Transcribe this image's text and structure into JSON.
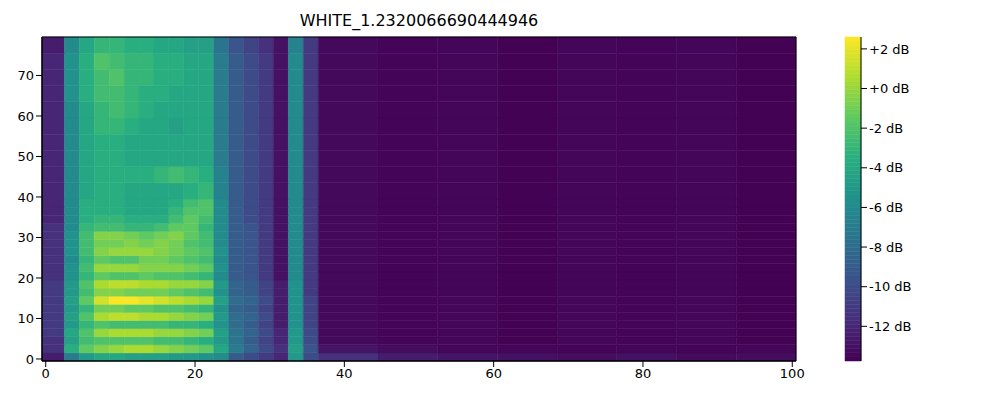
{
  "chart_data": {
    "type": "heatmap",
    "title": "WHITE_1.2320066690444946",
    "x_edges": [
      -0.5,
      2.5,
      4.5,
      6.5,
      8.5,
      10.5,
      12.5,
      14.5,
      16.5,
      18.5,
      20.5,
      22.5,
      24.5,
      26.5,
      28.5,
      30.5,
      32.5,
      34.5,
      36.5,
      44.5,
      52.5,
      60.5,
      68.5,
      76.5,
      84.5,
      92.5,
      100.5
    ],
    "y_edges": [
      -0.5,
      1.5,
      3.5,
      5.5,
      7.5,
      9.5,
      11.5,
      13.5,
      15.5,
      17.5,
      19.5,
      21.5,
      23.5,
      25.5,
      27.5,
      29.5,
      31.5,
      33.5,
      35.5,
      37.5,
      39.5,
      43.5,
      47.5,
      51.5,
      55.5,
      59.5,
      63.5,
      67.5,
      71.5,
      75.5,
      79.5
    ],
    "cells": [
      [
        -12.5,
        -7,
        -5,
        -4,
        -4,
        -4.5,
        -4.5,
        -4.5,
        -5,
        -5,
        -5.5,
        -6,
        -9,
        -10,
        -11,
        -12,
        -5,
        -10,
        -11.5,
        -12.5,
        -12.8,
        -13,
        -13.2,
        -13,
        -13.3,
        -13.2
      ],
      [
        -11.5,
        -3.5,
        -1.5,
        -0.5,
        0,
        0.5,
        0.5,
        0,
        -0.5,
        -1,
        -1.5,
        -4,
        -7,
        -8.5,
        -10,
        -11.5,
        -4.5,
        -9.5,
        -12.8,
        -13.2,
        -13.5,
        -13.5,
        -13.6,
        -13.5,
        -13.6,
        -13.5
      ],
      [
        -11.5,
        -4.5,
        -2.5,
        -2,
        -2,
        -2,
        -2,
        -2.5,
        -2.5,
        -3,
        -3.5,
        -5,
        -7.5,
        -9,
        -10.5,
        -12,
        -5,
        -10,
        -13.4,
        -13.6,
        -13.5,
        -13.7,
        -13.5,
        -13.6,
        -13.5,
        -13.7
      ],
      [
        -11,
        -4,
        -2,
        0,
        0.5,
        0.5,
        0.5,
        0,
        0,
        -0.5,
        -1,
        -4.5,
        -7.5,
        -8.5,
        -10,
        -12,
        -5,
        -10,
        -13.4,
        -13.6,
        -13.5,
        -13.7,
        -13.5,
        -13.6,
        -13.5,
        -13.7
      ],
      [
        -11,
        -5,
        -3,
        -2,
        -2.5,
        -2.5,
        -2.5,
        -2.5,
        -3,
        -3,
        -3.5,
        -5.5,
        -8,
        -9,
        -10.5,
        -12.5,
        -5.5,
        -10.5,
        -13.4,
        -13.6,
        -13.5,
        -13.7,
        -13.5,
        -13.6,
        -13.5,
        -13.7
      ],
      [
        -11,
        -4.5,
        -2,
        0.5,
        1,
        1,
        0.5,
        0.5,
        0,
        -0.5,
        -1,
        -5,
        -8,
        -8.5,
        -10,
        -12.5,
        -5.5,
        -10.5,
        -13.4,
        -13.6,
        -13.5,
        -13.7,
        -13.5,
        -13.6,
        -13.5,
        -13.7
      ],
      [
        -11,
        -5,
        -3,
        -1,
        -1,
        -1.5,
        -1.5,
        -2,
        -2,
        -2.5,
        -3,
        -5.5,
        -8.5,
        -9,
        -10.5,
        -12.5,
        -5.5,
        -10.5,
        -13.4,
        -13.6,
        -13.5,
        -13.7,
        -13.5,
        -13.6,
        -13.5,
        -13.7
      ],
      [
        -11,
        -4.5,
        -1.5,
        1.5,
        2.5,
        2.5,
        2,
        1.5,
        1,
        0.5,
        0,
        -4.5,
        -8,
        -8.5,
        -10,
        -12.5,
        -5.5,
        -10.5,
        -13.4,
        -13.6,
        -13.5,
        -13.7,
        -13.5,
        -13.6,
        -13.5,
        -13.7
      ],
      [
        -11,
        -5,
        -2.5,
        -0.5,
        -0.5,
        -1,
        -1,
        -1,
        -1.5,
        -2,
        -2.5,
        -5.5,
        -8.5,
        -9,
        -10.5,
        -12.5,
        -5.5,
        -11,
        -13.4,
        -13.6,
        -13.5,
        -13.7,
        -13.5,
        -13.6,
        -13.5,
        -13.7
      ],
      [
        -11,
        -5,
        -2,
        0.5,
        1,
        1,
        0.5,
        0.5,
        0,
        0,
        -0.5,
        -5,
        -8.5,
        -9,
        -10.5,
        -12.5,
        -5.5,
        -11,
        -13.4,
        -13.6,
        -13.5,
        -13.7,
        -13.5,
        -13.6,
        -13.5,
        -13.7
      ],
      [
        -11.5,
        -5.5,
        -3,
        -1.5,
        -2,
        -2,
        -1.5,
        -2,
        -2,
        -2.5,
        -3,
        -6,
        -9,
        -9.5,
        -11,
        -13,
        -6,
        -11,
        -13.4,
        -13.6,
        -13.5,
        -13.7,
        -13.5,
        -13.6,
        -13.5,
        -13.7
      ],
      [
        -11.5,
        -5.5,
        -2.5,
        0,
        0,
        0,
        -0.5,
        -0.5,
        -0.5,
        -1,
        -1.5,
        -5.5,
        -9,
        -9.5,
        -11,
        -13,
        -6,
        -11,
        -13.4,
        -13.6,
        -13.5,
        -13.7,
        -13.5,
        -13.6,
        -13.5,
        -13.7
      ],
      [
        -11.5,
        -6,
        -3,
        -1.5,
        -2,
        -2,
        -1,
        -1,
        -1.5,
        -2,
        -2.5,
        -6,
        -9,
        -9.5,
        -11,
        -13,
        -6,
        -11,
        -13.4,
        -13.6,
        -13.5,
        -13.7,
        -13.5,
        -13.6,
        -13.5,
        -13.7
      ],
      [
        -11.5,
        -5.5,
        -2.5,
        -0.5,
        0,
        0,
        0,
        -0.5,
        -1,
        -1.5,
        -2,
        -5.5,
        -9,
        -9.5,
        -11,
        -13,
        -6,
        -11,
        -13.4,
        -13.6,
        -13.5,
        -13.7,
        -13.5,
        -13.6,
        -13.5,
        -13.7
      ],
      [
        -11.5,
        -5.5,
        -2.5,
        -1,
        -1,
        -0.5,
        -1,
        -0.5,
        -1,
        -2,
        -2.5,
        -6,
        -9,
        -9.5,
        -11,
        -13,
        -6,
        -11,
        -13.4,
        -13.6,
        -13.5,
        -13.7,
        -13.5,
        -13.6,
        -13.5,
        -13.7
      ],
      [
        -11.5,
        -5.5,
        -2.5,
        -0.5,
        -0.5,
        -1,
        -1.5,
        -1,
        -0.5,
        -1.5,
        -2.5,
        -6,
        -9,
        -9.5,
        -11,
        -13,
        -6,
        -11,
        -13.4,
        -13.6,
        -13.5,
        -13.7,
        -13.5,
        -13.6,
        -13.5,
        -13.7
      ],
      [
        -11.5,
        -6,
        -3,
        -2.5,
        -2.5,
        -3,
        -3,
        -2.5,
        -1.5,
        -1.5,
        -3,
        -6,
        -9,
        -9.5,
        -11,
        -13,
        -6,
        -11,
        -13.4,
        -13.6,
        -13.5,
        -13.7,
        -13.5,
        -13.6,
        -13.5,
        -13.7
      ],
      [
        -12,
        -6,
        -3.5,
        -3,
        -3,
        -3.5,
        -3.5,
        -3.5,
        -2.5,
        -1.5,
        -2.5,
        -6,
        -9,
        -10,
        -11,
        -13,
        -6,
        -11,
        -13.4,
        -13.6,
        -13.5,
        -13.7,
        -13.5,
        -13.6,
        -13.5,
        -13.7
      ],
      [
        -12,
        -6,
        -3.5,
        -3.5,
        -3.5,
        -4,
        -4,
        -4,
        -3,
        -2,
        -2,
        -6,
        -9,
        -10,
        -11,
        -13,
        -6,
        -11,
        -13.4,
        -13.6,
        -13.5,
        -13.7,
        -13.5,
        -13.6,
        -13.5,
        -13.7
      ],
      [
        -12,
        -6,
        -3.5,
        -3.5,
        -3.5,
        -4,
        -4,
        -4,
        -3.5,
        -2.5,
        -2,
        -6,
        -9,
        -10,
        -11,
        -13,
        -6,
        -11,
        -13.4,
        -13.6,
        -13.5,
        -13.7,
        -13.5,
        -13.6,
        -13.5,
        -13.7
      ],
      [
        -12,
        -6,
        -4,
        -3.5,
        -3.5,
        -4,
        -4,
        -4,
        -4,
        -3.5,
        -3,
        -6.5,
        -9,
        -10,
        -11,
        -13,
        -6,
        -11,
        -13.4,
        -13.6,
        -13.5,
        -13.7,
        -13.5,
        -13.6,
        -13.5,
        -13.7
      ],
      [
        -12,
        -6,
        -4,
        -3.5,
        -3.5,
        -3.5,
        -3.5,
        -3,
        -2.5,
        -3,
        -3.5,
        -6.5,
        -9,
        -10,
        -11,
        -13,
        -6,
        -11,
        -13.4,
        -13.6,
        -13.5,
        -13.7,
        -13.5,
        -13.6,
        -13.5,
        -13.7
      ],
      [
        -12,
        -6,
        -4,
        -3.5,
        -3.5,
        -4,
        -4,
        -4,
        -4,
        -4,
        -4,
        -7,
        -9,
        -10,
        -11,
        -13,
        -6,
        -11,
        -13.4,
        -13.6,
        -13.5,
        -13.7,
        -13.5,
        -13.6,
        -13.5,
        -13.7
      ],
      [
        -12,
        -6,
        -4,
        -3.5,
        -3.5,
        -4,
        -4,
        -4,
        -4,
        -4,
        -4,
        -7,
        -9,
        -10,
        -11,
        -13,
        -6,
        -11,
        -13.4,
        -13.6,
        -13.5,
        -13.7,
        -13.5,
        -13.6,
        -13.5,
        -13.7
      ],
      [
        -12,
        -6,
        -4,
        -3,
        -3,
        -3.5,
        -4,
        -4,
        -4.5,
        -4,
        -4,
        -7,
        -9,
        -10,
        -11,
        -13,
        -6,
        -11,
        -13.4,
        -13.6,
        -13.5,
        -13.7,
        -13.5,
        -13.6,
        -13.5,
        -13.7
      ],
      [
        -12,
        -6,
        -4,
        -3,
        -2.5,
        -3,
        -3.5,
        -4,
        -4,
        -4,
        -4,
        -7,
        -9,
        -10,
        -11,
        -13,
        -6,
        -11,
        -13.4,
        -13.6,
        -13.5,
        -13.7,
        -13.5,
        -13.6,
        -13.5,
        -13.7
      ],
      [
        -12,
        -5.5,
        -3.5,
        -2.5,
        -2.5,
        -3,
        -3.5,
        -3.5,
        -4,
        -4,
        -4,
        -7,
        -9,
        -10,
        -11,
        -13,
        -6,
        -11,
        -13.4,
        -13.6,
        -13.5,
        -13.7,
        -13.5,
        -13.6,
        -13.5,
        -13.7
      ],
      [
        -12,
        -5.5,
        -3.5,
        -2.5,
        -2,
        -3,
        -3,
        -3.5,
        -3.5,
        -4,
        -4,
        -7,
        -9,
        -10,
        -11,
        -13,
        -6,
        -11,
        -13.4,
        -13.6,
        -13.5,
        -13.7,
        -13.5,
        -13.6,
        -13.5,
        -13.7
      ],
      [
        -12,
        -5.5,
        -3.5,
        -2,
        -2.5,
        -3,
        -3,
        -3.5,
        -3.5,
        -4,
        -4,
        -7,
        -9,
        -10,
        -11,
        -13,
        -6,
        -11,
        -13.4,
        -13.6,
        -13.5,
        -13.7,
        -13.5,
        -13.6,
        -13.5,
        -13.7
      ],
      [
        -12.5,
        -6,
        -4,
        -3,
        -3,
        -3.5,
        -3.5,
        -4,
        -4,
        -4.5,
        -4.5,
        -7.5,
        -9.5,
        -10.5,
        -11.5,
        -13,
        -6.5,
        -11,
        -13.4,
        -13.6,
        -13.5,
        -13.7,
        -13.5,
        -13.6,
        -13.5,
        -13.7
      ]
    ],
    "xlim": [
      -0.5,
      100.5
    ],
    "ylim": [
      -0.5,
      79.5
    ],
    "xticks": [
      0,
      20,
      40,
      60,
      80,
      100
    ],
    "yticks": [
      0,
      10,
      20,
      30,
      40,
      50,
      60,
      70
    ],
    "colorbar": {
      "range": [
        -13.75,
        2.6
      ],
      "ticks": [
        {
          "value": 2,
          "label": "+2 dB"
        },
        {
          "value": 0,
          "label": "+0 dB"
        },
        {
          "value": -2,
          "label": "-2 dB"
        },
        {
          "value": -4,
          "label": "-4 dB"
        },
        {
          "value": -6,
          "label": "-6 dB"
        },
        {
          "value": -8,
          "label": "-8 dB"
        },
        {
          "value": -10,
          "label": "-10 dB"
        },
        {
          "value": -12,
          "label": "-12 dB"
        }
      ]
    }
  }
}
